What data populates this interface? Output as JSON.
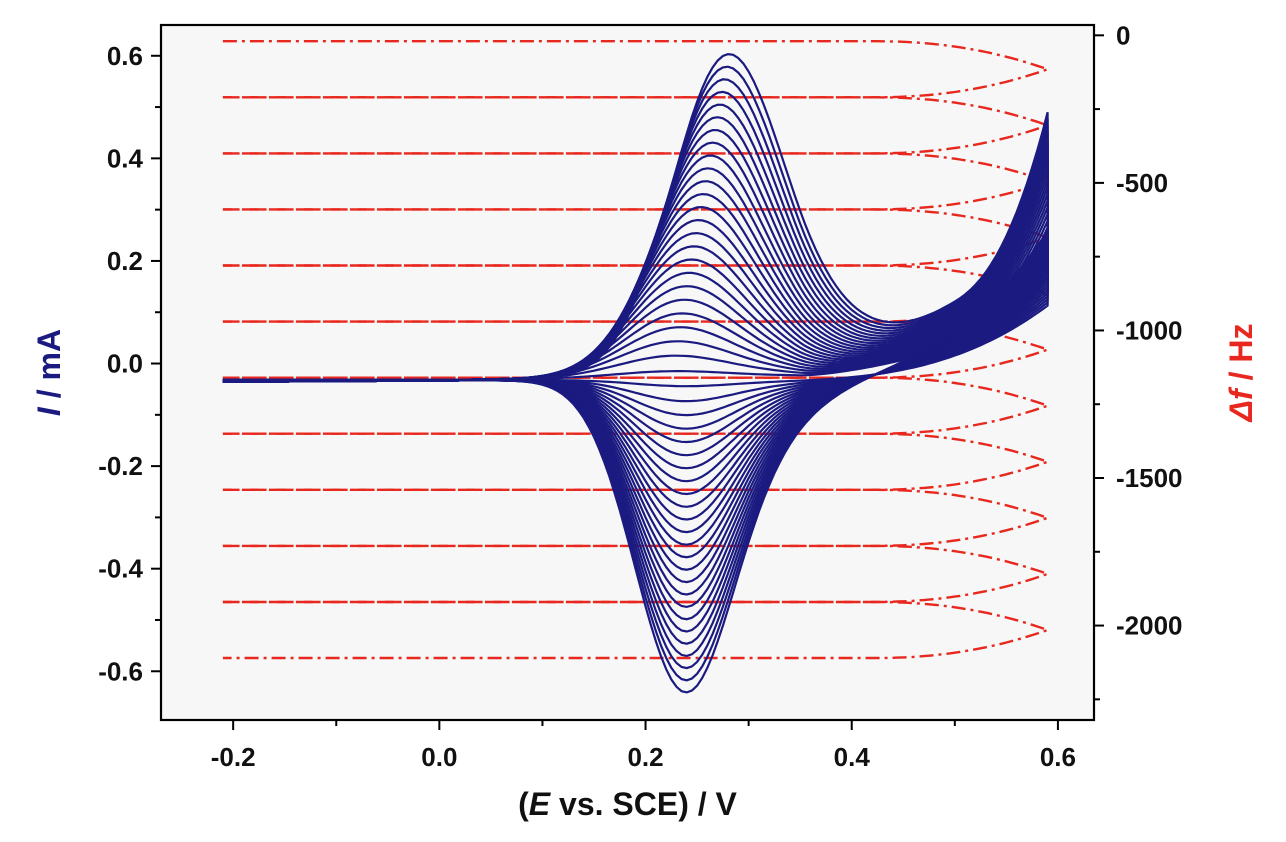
{
  "chart_data": {
    "type": "line",
    "xlabel": {
      "open": "(",
      "var": "E",
      "rest": " vs. SCE) / V"
    },
    "ylabel_left": {
      "var": "I",
      "rest": " / mA"
    },
    "ylabel_right": {
      "var": "Δf",
      "rest": " / Hz"
    },
    "xlim": [
      -0.27,
      0.635
    ],
    "ylim_left": [
      -0.695,
      0.66
    ],
    "ylim_right": [
      -2320,
      35
    ],
    "x_ticks": [
      -0.2,
      0.0,
      0.2,
      0.4,
      0.6
    ],
    "x_tick_labels": [
      "-0.2",
      "0.0",
      "0.2",
      "0.4",
      "0.6"
    ],
    "y_left_ticks": [
      0.6,
      0.4,
      0.2,
      0.0,
      -0.2,
      -0.4,
      -0.6
    ],
    "y_left_tick_labels": [
      "0.6",
      "0.4",
      "0.2",
      "0.0",
      "-0.2",
      "-0.4",
      "-0.6"
    ],
    "y_right_ticks": [
      0,
      -500,
      -1000,
      -1500,
      -2000
    ],
    "y_right_tick_labels": [
      "0",
      "-500",
      "-1000",
      "-1500",
      "-2000"
    ],
    "potential_window": [
      -0.21,
      0.59
    ],
    "series": [
      {
        "axis": "left",
        "style": "solid",
        "color": "#1a1a80",
        "cycles": 25,
        "oxidation_peak_potential_range": [
          0.22,
          0.275
        ],
        "oxidation_peak_current_max": 0.655,
        "reduction_peak_potential": 0.235,
        "reduction_peak_current_min": -0.615,
        "current_at_switch_max": 0.51
      },
      {
        "axis": "right",
        "style": "dash-dot",
        "color": "#e8281e",
        "cycles": 11,
        "start_frequency": -20,
        "frequency_drop_per_cycle": -190,
        "fold_potential": 0.59
      }
    ]
  }
}
